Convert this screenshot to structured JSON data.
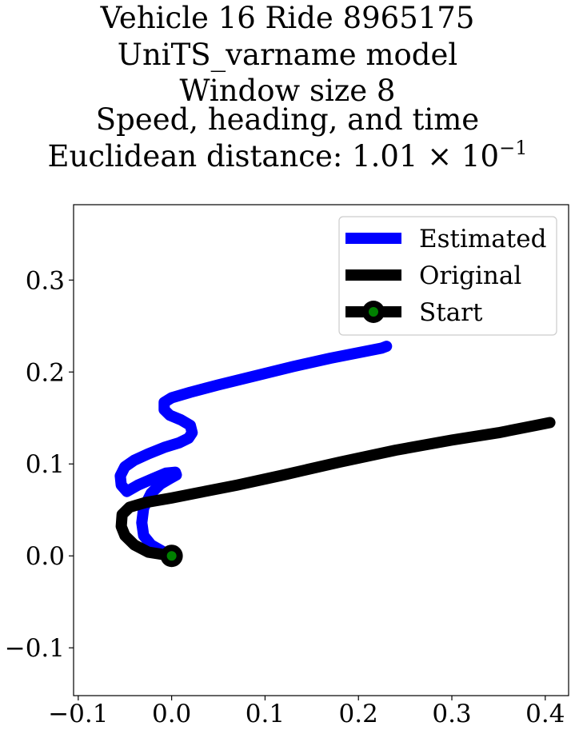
{
  "title": {
    "line1": "Vehicle 16 Ride 8965175",
    "line2": "UniTS_varname model",
    "line3": "Window size 8",
    "line4": "Speed, heading, and time",
    "line5_prefix": "Euclidean distance: 1.01 × 10",
    "line5_exp": "−1"
  },
  "chart_data": {
    "type": "line",
    "xlim": [
      -0.105,
      0.425
    ],
    "ylim": [
      -0.152,
      0.382
    ],
    "xticks": [
      -0.1,
      0.0,
      0.1,
      0.2,
      0.3,
      0.4
    ],
    "xtick_labels": [
      "−0.1",
      "0.0",
      "0.1",
      "0.2",
      "0.3",
      "0.4"
    ],
    "yticks": [
      -0.1,
      0.0,
      0.1,
      0.2,
      0.3
    ],
    "ytick_labels": [
      "−0.1",
      "0.0",
      "0.1",
      "0.2",
      "0.3"
    ],
    "grid": false,
    "legend_position": "upper right",
    "series": [
      {
        "name": "Estimated",
        "color": "#0000ff",
        "x": [
          0.0,
          -0.01,
          -0.022,
          -0.03,
          -0.032,
          -0.03,
          -0.022,
          -0.012,
          -0.002,
          0.005,
          0.004,
          -0.006,
          -0.02,
          -0.036,
          -0.048,
          -0.054,
          -0.055,
          -0.05,
          -0.04,
          -0.025,
          -0.008,
          0.008,
          0.018,
          0.022,
          0.02,
          0.01,
          -0.002,
          -0.008,
          -0.008,
          0.0,
          0.02,
          0.05,
          0.09,
          0.13,
          0.17,
          0.2,
          0.225,
          0.23
        ],
        "y": [
          0.0,
          0.005,
          0.012,
          0.022,
          0.036,
          0.052,
          0.068,
          0.078,
          0.084,
          0.088,
          0.091,
          0.09,
          0.084,
          0.077,
          0.07,
          0.077,
          0.087,
          0.097,
          0.104,
          0.111,
          0.118,
          0.123,
          0.128,
          0.134,
          0.142,
          0.148,
          0.153,
          0.159,
          0.167,
          0.172,
          0.178,
          0.186,
          0.196,
          0.206,
          0.215,
          0.221,
          0.226,
          0.228
        ]
      },
      {
        "name": "Original",
        "color": "#000000",
        "x": [
          0.0,
          -0.025,
          -0.04,
          -0.05,
          -0.054,
          -0.053,
          -0.045,
          -0.028,
          0.0,
          0.03,
          0.07,
          0.12,
          0.18,
          0.24,
          0.3,
          0.35,
          0.39,
          0.405
        ],
        "y": [
          0.0,
          0.004,
          0.012,
          0.022,
          0.032,
          0.045,
          0.053,
          0.058,
          0.063,
          0.069,
          0.077,
          0.088,
          0.102,
          0.115,
          0.126,
          0.134,
          0.142,
          0.145
        ]
      },
      {
        "name": "Start",
        "color": "#000000",
        "marker_face": "#008000",
        "x": [
          0.0
        ],
        "y": [
          0.0
        ]
      }
    ]
  }
}
